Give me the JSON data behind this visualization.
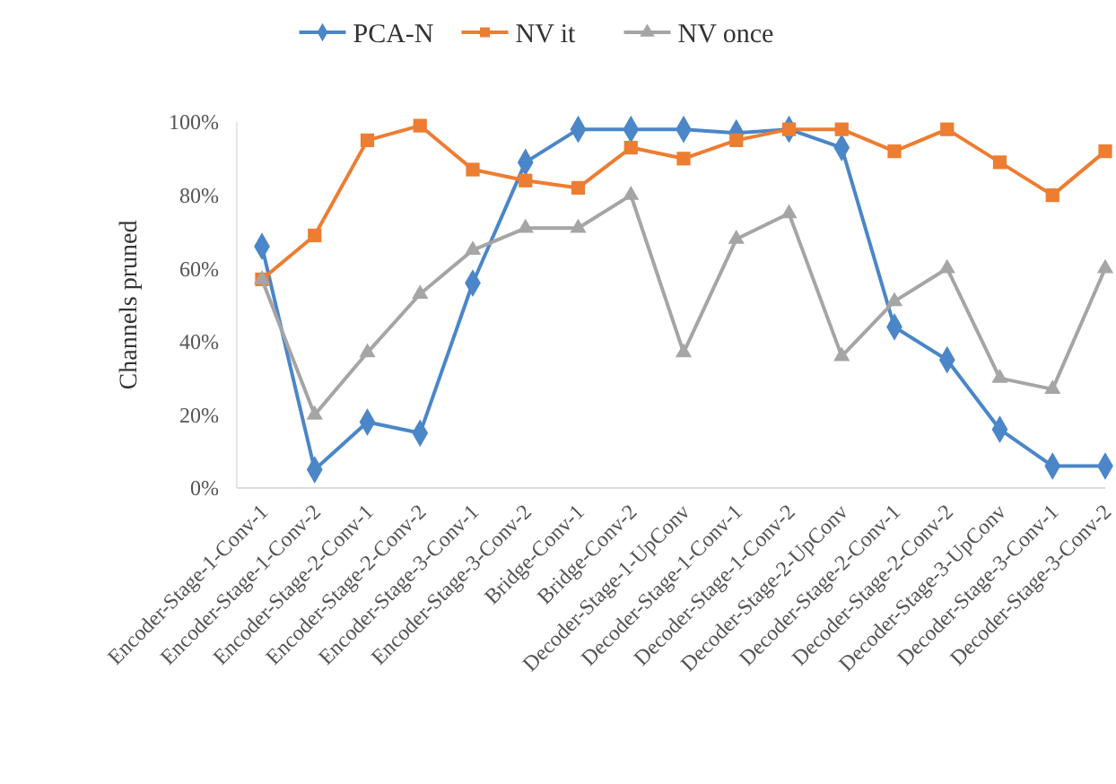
{
  "chart_data": {
    "type": "line",
    "ylabel": "Channels pruned",
    "categories": [
      "Encoder-Stage-1-Conv-1",
      "Encoder-Stage-1-Conv-2",
      "Encoder-Stage-2-Conv-1",
      "Encoder-Stage-2-Conv-2",
      "Encoder-Stage-3-Conv-1",
      "Encoder-Stage-3-Conv-2",
      "Bridge-Conv-1",
      "Bridge-Conv-2",
      "Decoder-Stage-1-UpConv",
      "Decoder-Stage-1-Conv-1",
      "Decoder-Stage-1-Conv-2",
      "Decoder-Stage-2-UpConv",
      "Decoder-Stage-2-Conv-1",
      "Decoder-Stage-2-Conv-2",
      "Decoder-Stage-3-UpConv",
      "Decoder-Stage-3-Conv-1",
      "Decoder-Stage-3-Conv-2"
    ],
    "series": [
      {
        "name": "PCA-N",
        "color": "#4a86c8",
        "marker": "diamond",
        "values": [
          66,
          5,
          18,
          15,
          56,
          89,
          98,
          98,
          98,
          97,
          98,
          93,
          44,
          35,
          16,
          6,
          6
        ]
      },
      {
        "name": "NV it",
        "color": "#ed7d31",
        "marker": "square",
        "values": [
          57,
          69,
          95,
          99,
          87,
          84,
          82,
          93,
          90,
          95,
          98,
          98,
          92,
          98,
          89,
          80,
          92
        ]
      },
      {
        "name": "NV once",
        "color": "#a5a5a5",
        "marker": "triangle",
        "values": [
          57,
          20,
          37,
          53,
          65,
          71,
          71,
          80,
          37,
          68,
          75,
          36,
          51,
          60,
          30,
          27,
          60
        ]
      }
    ],
    "ylim": [
      0,
      100
    ],
    "yticks": [
      {
        "value": 0,
        "label": "0%"
      },
      {
        "value": 20,
        "label": "20%"
      },
      {
        "value": 40,
        "label": "40%"
      },
      {
        "value": 60,
        "label": "60%"
      },
      {
        "value": 80,
        "label": "80%"
      },
      {
        "value": 100,
        "label": "100%"
      }
    ],
    "grid": false,
    "legend": "top",
    "line_style": "solid"
  }
}
